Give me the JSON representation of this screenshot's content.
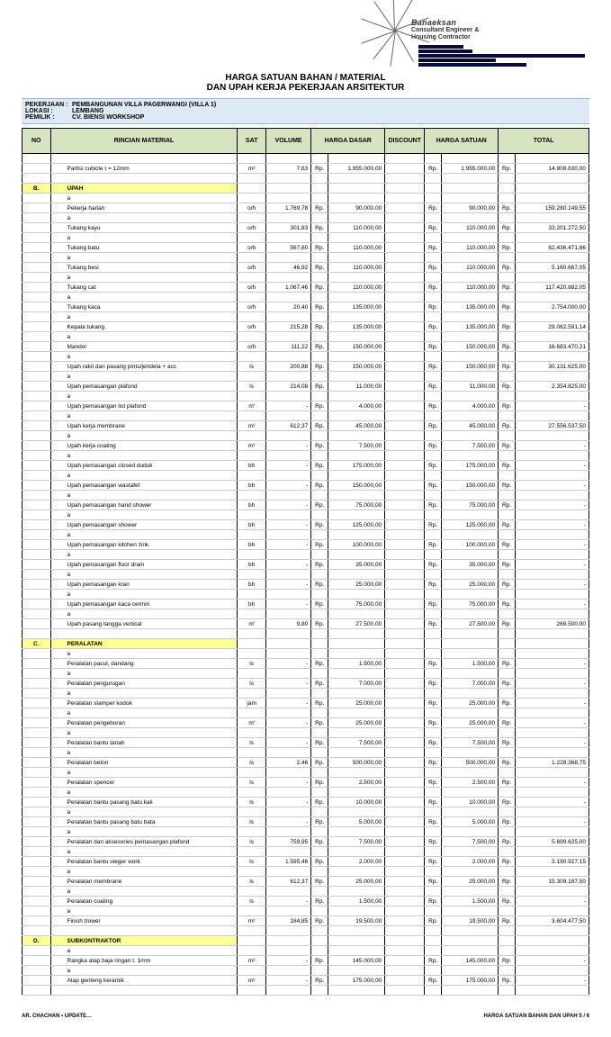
{
  "logo": {
    "name": "Banaeksan",
    "sub1": "Consultant Engineer &",
    "sub2": "Housing Contractor"
  },
  "title": {
    "line1": "HARGA SATUAN BAHAN / MATERIAL",
    "line2": "DAN UPAH KERJA PEKERJAAN ARSITEKTUR"
  },
  "meta": {
    "labels": {
      "job": "PEKERJAAN",
      "loc": "LOKASI",
      "owner": "PEMILIK"
    },
    "job": "PEMBANGUNAN VILLA PAGERWANGI (VILLA 1)",
    "loc": "LEMBANG",
    "owner": "CV. BIENSI WORKSHOP"
  },
  "headers": {
    "no": "NO",
    "desc": "RINCIAN MATERIAL",
    "sat": "SAT",
    "vol": "VOLUME",
    "hd": "HARGA DASAR",
    "disc": "DISCOUNT",
    "hs": "HARGA SATUAN",
    "tot": "TOTAL"
  },
  "rp": "Rp.",
  "top_row": {
    "desc": "Partisi cubicle t = 12mm",
    "sat": "m²",
    "vol": "7,63",
    "hd": "1.955.000,00",
    "hs": "1.955.000,00",
    "tot": "14.908.830,00"
  },
  "sections": [
    {
      "letter": "B.",
      "title": "UPAH",
      "rows": [
        {
          "desc": "Pekerja harian",
          "sat": "o/h",
          "vol": "1.769,78",
          "hd": "90.000,00",
          "hs": "90.000,00",
          "tot": "159.280.149,55"
        },
        {
          "desc": "Tukang kayu",
          "sat": "o/h",
          "vol": "301,83",
          "hd": "110.000,00",
          "hs": "110.000,00",
          "tot": "33.201.272,50"
        },
        {
          "desc": "Tukang batu",
          "sat": "o/h",
          "vol": "567,60",
          "hd": "110.000,00",
          "hs": "110.000,00",
          "tot": "62.436.471,86"
        },
        {
          "desc": "Tukang besi",
          "sat": "o/h",
          "vol": "46,92",
          "hd": "110.000,00",
          "hs": "110.000,00",
          "tot": "5.160.667,05"
        },
        {
          "desc": "Tukang cat",
          "sat": "o/h",
          "vol": "1.067,46",
          "hd": "110.000,00",
          "hs": "110.000,00",
          "tot": "117.420.882,05"
        },
        {
          "desc": "Tukang kaca",
          "sat": "o/h",
          "vol": "20,40",
          "hd": "135.000,00",
          "hs": "135.000,00",
          "tot": "2.754.000,00"
        },
        {
          "desc": "Kepala tukang",
          "sat": "o/h",
          "vol": "215,28",
          "hd": "135.000,00",
          "hs": "135.000,00",
          "tot": "29.062.591,14"
        },
        {
          "desc": "Mandor",
          "sat": "o/h",
          "vol": "111,22",
          "hd": "150.000,00",
          "hs": "150.000,00",
          "tot": "16.683.470,21"
        },
        {
          "desc": "Upah rakit dan pasang pintu/jendela + acc",
          "sat": "ls",
          "vol": "200,88",
          "hd": "150.000,00",
          "hs": "150.000,00",
          "tot": "30.131.625,00"
        },
        {
          "desc": "Upah pemasangan plafond",
          "sat": "ls",
          "vol": "214,08",
          "hd": "11.000,00",
          "hs": "11.000,00",
          "tot": "2.354.825,00"
        },
        {
          "desc": "Upah pemasangan list plafond",
          "sat": "m'",
          "vol": "-",
          "hd": "4.000,00",
          "hs": "4.000,00",
          "tot": "-"
        },
        {
          "desc": "Upah kerja membrane",
          "sat": "m²",
          "vol": "612,37",
          "hd": "45.000,00",
          "hs": "45.000,00",
          "tot": "27.556.537,50"
        },
        {
          "desc": "Upah kerja coating",
          "sat": "m²",
          "vol": "-",
          "hd": "7.500,00",
          "hs": "7.500,00",
          "tot": "-"
        },
        {
          "desc": "Upah pemasangan closed duduk",
          "sat": "bh",
          "vol": "-",
          "hd": "175.000,00",
          "hs": "175.000,00",
          "tot": "-"
        },
        {
          "desc": "Upah pemasangan wastafel",
          "sat": "bh",
          "vol": "-",
          "hd": "150.000,00",
          "hs": "150.000,00",
          "tot": "-"
        },
        {
          "desc": "Upah pemasangan hand shower",
          "sat": "bh",
          "vol": "-",
          "hd": "75.000,00",
          "hs": "75.000,00",
          "tot": "-"
        },
        {
          "desc": "Upah pemasangan shower",
          "sat": "bh",
          "vol": "-",
          "hd": "125.000,00",
          "hs": "125.000,00",
          "tot": "-"
        },
        {
          "desc": "Upah pemasangan kitchen zink",
          "sat": "bh",
          "vol": "-",
          "hd": "100.000,00",
          "hs": "100.000,00",
          "tot": "-"
        },
        {
          "desc": "Upah pemasangan floor drain",
          "sat": "bh",
          "vol": "-",
          "hd": "35.000,00",
          "hs": "35.000,00",
          "tot": "-"
        },
        {
          "desc": "Upah pemasangan kran",
          "sat": "bh",
          "vol": "-",
          "hd": "25.000,00",
          "hs": "25.000,00",
          "tot": "-"
        },
        {
          "desc": "Upah pemasangan kaca cermin",
          "sat": "bh",
          "vol": "-",
          "hd": "75.000,00",
          "hs": "75.000,00",
          "tot": "-"
        },
        {
          "desc": "Upah pasang tangga vertical",
          "sat": "m'",
          "vol": "9,80",
          "hd": "27.500,00",
          "hs": "27.500,00",
          "tot": "269.500,00"
        }
      ]
    },
    {
      "letter": "C.",
      "title": "PERALATAN",
      "rows": [
        {
          "desc": "Peralatan pacul, dandang",
          "sat": "ls",
          "vol": "-",
          "hd": "1.500,00",
          "hs": "1.500,00",
          "tot": "-"
        },
        {
          "desc": "Peralatan pengurugan",
          "sat": "ls",
          "vol": "-",
          "hd": "7.000,00",
          "hs": "7.000,00",
          "tot": "-"
        },
        {
          "desc": "Peralatan stamper kodok",
          "sat": "jam",
          "vol": "-",
          "hd": "25.000,00",
          "hs": "25.000,00",
          "tot": "-"
        },
        {
          "desc": "Peralatan pengeboran",
          "sat": "m'",
          "vol": "-",
          "hd": "25.000,00",
          "hs": "25.000,00",
          "tot": "-"
        },
        {
          "desc": "Peralatan bantu tanah",
          "sat": "ls",
          "vol": "-",
          "hd": "7.500,00",
          "hs": "7.500,00",
          "tot": "-"
        },
        {
          "desc": "Peralatan beton",
          "sat": "ls",
          "vol": "2,46",
          "hd": "500.000,00",
          "hs": "500.000,00",
          "tot": "1.228.368,75"
        },
        {
          "desc": "Peralatan spencer",
          "sat": "ls",
          "vol": "-",
          "hd": "2.500,00",
          "hs": "2.500,00",
          "tot": "-"
        },
        {
          "desc": "Peralatan bantu pasang batu kali",
          "sat": "ls",
          "vol": "-",
          "hd": "10.000,00",
          "hs": "10.000,00",
          "tot": "-"
        },
        {
          "desc": "Peralatan bantu pasang batu bata",
          "sat": "ls",
          "vol": "-",
          "hd": "5.000,00",
          "hs": "5.000,00",
          "tot": "-"
        },
        {
          "desc": "Peralatan dan aksesories pemasangan plafond",
          "sat": "ls",
          "vol": "759,95",
          "hd": "7.500,00",
          "hs": "7.500,00",
          "tot": "5.699.625,00"
        },
        {
          "desc": "Peralatan bantu steger work",
          "sat": "ls",
          "vol": "1.595,46",
          "hd": "2.000,00",
          "hs": "2.000,00",
          "tot": "3.190.927,15"
        },
        {
          "desc": "Peralatan membrane",
          "sat": "ls",
          "vol": "612,37",
          "hd": "25.000,00",
          "hs": "25.000,00",
          "tot": "15.309.187,50"
        },
        {
          "desc": "Peralatan coating",
          "sat": "ls",
          "vol": "-",
          "hd": "1.500,00",
          "hs": "1.500,00",
          "tot": "-"
        },
        {
          "desc": "Finish trowel",
          "sat": "m²",
          "vol": "184,85",
          "hd": "19.500,00",
          "hs": "19.500,00",
          "tot": "3.604.477,50"
        }
      ]
    },
    {
      "letter": "D.",
      "title": "SUBKONTRAKTOR",
      "rows": [
        {
          "desc": "Rangka atap baja ringan t. 1mm",
          "sat": "m²",
          "vol": "-",
          "hd": "145.000,00",
          "hs": "145.000,00",
          "tot": "-"
        },
        {
          "desc": "Atap genteng keramik",
          "sat": "m²",
          "vol": "-",
          "hd": "175.000,00",
          "hs": "175.000,00",
          "tot": "-"
        }
      ]
    }
  ],
  "footer": {
    "left": "AR. CHACHAN • UPDATE…",
    "right": "HARGA SATUAN BAHAN DAN UPAH 5 / 6"
  },
  "colors": {
    "header_bg": "#d6e4c1",
    "meta_bg": "#ddeaf5",
    "section_bg": "#ffff99",
    "navy": "#0b0b3a"
  },
  "a_label": "a"
}
